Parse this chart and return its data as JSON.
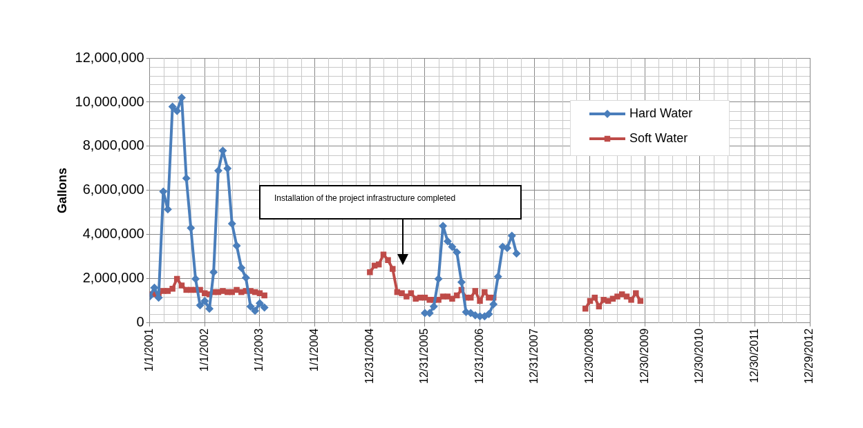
{
  "chart_data": {
    "type": "line",
    "ylabel": "Gallons",
    "ylim": [
      0,
      12000000
    ],
    "yticks": [
      0,
      {
        "value": 2000000,
        "label": "2,000,000"
      },
      {
        "value": 4000000,
        "label": "4,000,000"
      },
      {
        "value": 6000000,
        "label": "6,000,000"
      },
      {
        "value": 8000000,
        "label": "8,000,000"
      },
      {
        "value": 10000000,
        "label": "10,000,000"
      },
      {
        "value": 12000000,
        "label": "12,000,000"
      }
    ],
    "xlim": [
      "2001-01-01",
      "2012-12-29"
    ],
    "xticks": [
      {
        "value": "2001-01-01",
        "label": "1/1/2001"
      },
      {
        "value": "2002-01-01",
        "label": "1/1/2002"
      },
      {
        "value": "2003-01-01",
        "label": "1/1/2003"
      },
      {
        "value": "2004-01-01",
        "label": "1/1/2004"
      },
      {
        "value": "2004-12-31",
        "label": "12/31/2004"
      },
      {
        "value": "2005-12-31",
        "label": "12/31/2005"
      },
      {
        "value": "2006-12-31",
        "label": "12/31/2006"
      },
      {
        "value": "2007-12-31",
        "label": "12/31/2007"
      },
      {
        "value": "2008-12-30",
        "label": "12/30/2008"
      },
      {
        "value": "2009-12-30",
        "label": "12/30/2009"
      },
      {
        "value": "2010-12-30",
        "label": "12/30/2010"
      },
      {
        "value": "2011-12-30",
        "label": "12/30/2011"
      },
      {
        "value": "2012-12-29",
        "label": "12/29/2012"
      }
    ],
    "grid": true,
    "legend": "top right",
    "line_style": "solid",
    "series": [
      {
        "name": "Hard Water",
        "color": "#4a7ebb",
        "marker": "diamond",
        "x": [
          "2001-01",
          "2001-02",
          "2001-03",
          "2001-04",
          "2001-05",
          "2001-06",
          "2001-07",
          "2001-08",
          "2001-09",
          "2001-10",
          "2001-11",
          "2001-12",
          "2002-01",
          "2002-02",
          "2002-03",
          "2002-04",
          "2002-05",
          "2002-06",
          "2002-07",
          "2002-08",
          "2002-09",
          "2002-10",
          "2002-11",
          "2002-12",
          "2003-01",
          "2003-02",
          "2003-03",
          "2006-01",
          "2006-02",
          "2006-03",
          "2006-04",
          "2006-05",
          "2006-06",
          "2006-07",
          "2006-08",
          "2006-09",
          "2006-10",
          "2006-11",
          "2006-12",
          "2007-01",
          "2007-02",
          "2007-03",
          "2007-04",
          "2007-05",
          "2007-06",
          "2007-07",
          "2007-08",
          "2007-09"
        ],
        "values": [
          1200000,
          1600000,
          1150000,
          5950000,
          5150000,
          9800000,
          9600000,
          10200000,
          6550000,
          4300000,
          2000000,
          800000,
          1000000,
          650000,
          2300000,
          6900000,
          7800000,
          7000000,
          4500000,
          3500000,
          2500000,
          2050000,
          750000,
          550000,
          900000,
          700000,
          null,
          450000,
          450000,
          750000,
          2000000,
          4400000,
          3700000,
          3450000,
          3200000,
          1850000,
          500000,
          450000,
          350000,
          300000,
          300000,
          400000,
          850000,
          2100000,
          3450000,
          3400000,
          3950000,
          3150000
        ]
      },
      {
        "name": "Soft Water",
        "color": "#be4b48",
        "marker": "square",
        "x": [
          "2001-01",
          "2001-02",
          "2001-03",
          "2001-04",
          "2001-05",
          "2001-06",
          "2001-07",
          "2001-08",
          "2001-09",
          "2001-10",
          "2001-11",
          "2001-12",
          "2002-01",
          "2002-02",
          "2002-03",
          "2002-04",
          "2002-05",
          "2002-06",
          "2002-07",
          "2002-08",
          "2002-09",
          "2002-10",
          "2002-11",
          "2002-12",
          "2003-01",
          "2003-02",
          "2003-03",
          "2005-01",
          "2005-02",
          "2005-03",
          "2005-04",
          "2005-05",
          "2005-06",
          "2005-07",
          "2005-08",
          "2005-09",
          "2005-10",
          "2005-11",
          "2005-12",
          "2006-01",
          "2006-02",
          "2006-03",
          "2006-04",
          "2006-05",
          "2006-06",
          "2006-07",
          "2006-08",
          "2006-09",
          "2006-10",
          "2006-11",
          "2006-12",
          "2007-01",
          "2007-02",
          "2007-03",
          "2007-04",
          "2007-05",
          "2008-12",
          "2009-01",
          "2009-02",
          "2009-03",
          "2009-04",
          "2009-05",
          "2009-06",
          "2009-07",
          "2009-08",
          "2009-09",
          "2009-10",
          "2009-11",
          "2009-12"
        ],
        "values": [
          1300000,
          1300000,
          1300000,
          1450000,
          1450000,
          1550000,
          2000000,
          1700000,
          1500000,
          1500000,
          1500000,
          1500000,
          1350000,
          1300000,
          1400000,
          1400000,
          1450000,
          1400000,
          1400000,
          1500000,
          1400000,
          1450000,
          1450000,
          1400000,
          1350000,
          1250000,
          null,
          2300000,
          2600000,
          2650000,
          3100000,
          2850000,
          2450000,
          1400000,
          1350000,
          1200000,
          1350000,
          1100000,
          1150000,
          1150000,
          1050000,
          1050000,
          1050000,
          1200000,
          1200000,
          1100000,
          1250000,
          1500000,
          1150000,
          1150000,
          1450000,
          1000000,
          1400000,
          1150000,
          1150000,
          null,
          650000,
          1000000,
          1150000,
          750000,
          1050000,
          1000000,
          1100000,
          1200000,
          1300000,
          1200000,
          1050000,
          1350000,
          1000000
        ]
      }
    ],
    "annotations": [
      "Installation of the project infrastructure completed"
    ]
  }
}
